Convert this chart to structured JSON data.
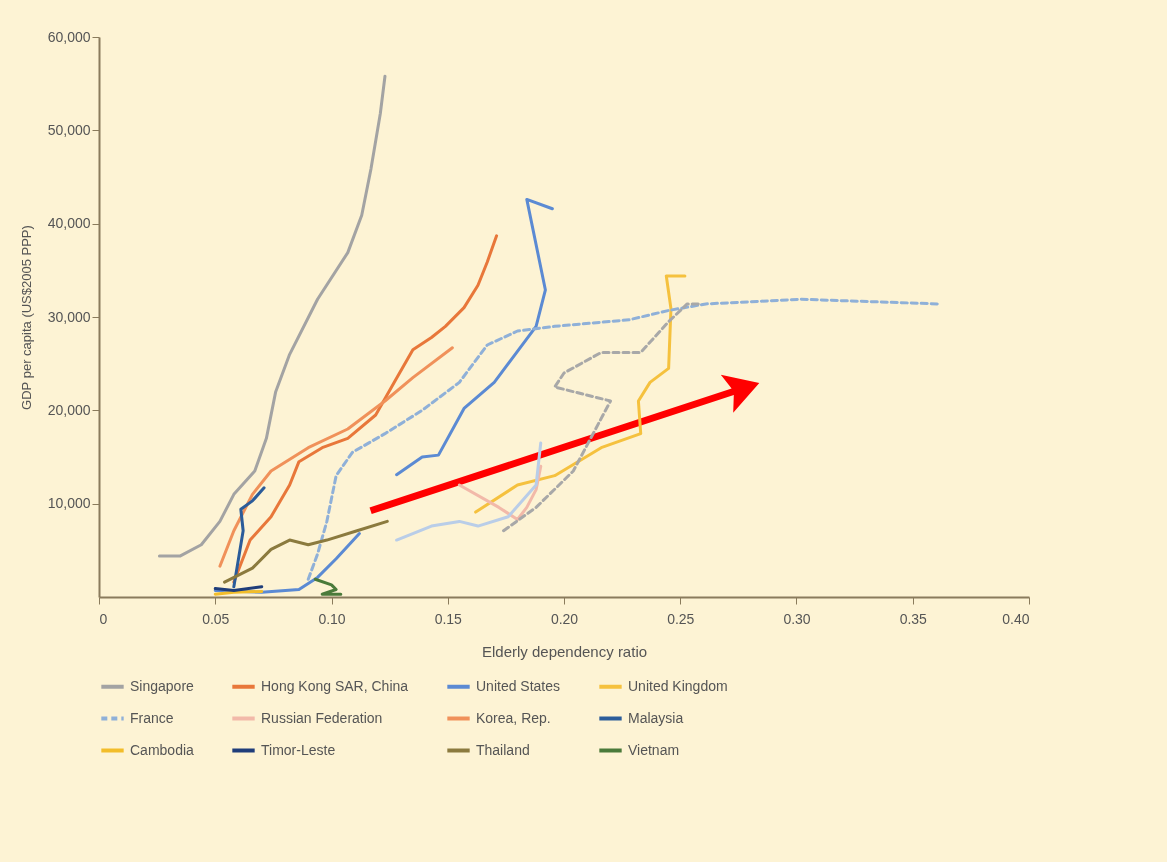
{
  "chart_data": {
    "type": "line",
    "xlabel": "Elderly dependency ratio",
    "ylabel": "GDP per capita (US$2005 PPP)",
    "xlim": [
      0,
      0.4
    ],
    "xticks": [
      0,
      {
        "value": 0.05,
        "label": "0.05"
      },
      {
        "value": 0.1,
        "label": "0.10"
      },
      {
        "value": 0.15,
        "label": "0.15"
      },
      {
        "value": 0.2,
        "label": "0.20"
      },
      {
        "value": 0.25,
        "label": "0.25"
      },
      {
        "value": 0.3,
        "label": "0.30"
      },
      {
        "value": 0.35,
        "label": "0.35"
      },
      {
        "value": 0.4,
        "label": "0.40"
      }
    ],
    "ylim": [
      0,
      60000
    ],
    "yticks": [
      {
        "value": 10000,
        "label": "10,000"
      },
      {
        "value": 20000,
        "label": "20,000"
      },
      {
        "value": 30000,
        "label": "30,000"
      },
      {
        "value": 40000,
        "label": "40,000"
      },
      {
        "value": 50000,
        "label": "50,000"
      },
      {
        "value": 60000,
        "label": "60,000"
      }
    ],
    "grid": false,
    "legend": "bottom",
    "marker": "none",
    "series": [
      {
        "name": "Singapore",
        "color": "#a3a3a3",
        "x": [
          0.026,
          0.035,
          0.044,
          0.052,
          0.058,
          0.067,
          0.072,
          0.076,
          0.082,
          0.094,
          0.107,
          0.113,
          0.117,
          0.121,
          0.123
        ],
        "values": [
          4400,
          4400,
          5600,
          8100,
          11000,
          13500,
          17000,
          22000,
          26000,
          31900,
          36900,
          40900,
          45900,
          51800,
          55800
        ]
      },
      {
        "name": "Hong Kong SAR, China",
        "color": "#e8773a",
        "x": [
          0.058,
          0.065,
          0.074,
          0.082,
          0.086,
          0.096,
          0.107,
          0.119,
          0.127,
          0.135,
          0.143,
          0.149,
          0.157,
          0.163,
          0.167,
          0.171
        ],
        "values": [
          1600,
          6100,
          8600,
          12000,
          14500,
          16000,
          17000,
          19500,
          23000,
          26500,
          27800,
          29000,
          31000,
          33400,
          35900,
          38700
        ]
      },
      {
        "name": "United States",
        "color": "#5b8ad3",
        "x": [
          0.05,
          0.07,
          0.086,
          0.094,
          0.102,
          0.112,
          0.12,
          0.128,
          0.139,
          0.146,
          0.157,
          0.17,
          0.188,
          0.192,
          0.184,
          0.195
        ],
        "values": [
          700,
          500,
          800,
          2100,
          4100,
          6800,
          null,
          13100,
          15000,
          15200,
          20200,
          23000,
          29000,
          32900,
          42600,
          41600
        ]
      },
      {
        "name": "United Kingdom",
        "color": "#f5c13e",
        "x": [
          0.162,
          0.18,
          0.196,
          0.216,
          0.233,
          0.232,
          0.237,
          0.245,
          0.246,
          0.244,
          0.252
        ],
        "values": [
          9100,
          12000,
          13000,
          16000,
          17500,
          21000,
          23000,
          24500,
          30900,
          34400,
          34400
        ]
      },
      {
        "name": "France",
        "color": "#8fb0d8",
        "line_style": "dashed",
        "x": [
          0.09,
          0.094,
          0.098,
          0.102,
          0.109,
          0.123,
          0.139,
          0.155,
          0.167,
          0.18,
          0.196,
          0.228,
          0.245,
          0.261,
          0.302,
          0.361
        ],
        "values": [
          1900,
          4600,
          8100,
          13000,
          15500,
          17500,
          20000,
          23000,
          27000,
          28500,
          29000,
          29700,
          30700,
          31400,
          31900,
          31400
        ]
      },
      {
        "name": "Russian Federation",
        "color": "#f2b9a9",
        "x": [
          0.155,
          0.172,
          0.18,
          0.184,
          0.188,
          0.19
        ],
        "values": [
          12000,
          9600,
          8300,
          9600,
          11500,
          14000
        ]
      },
      {
        "name": "Korea, Rep.",
        "color": "#f0915a",
        "x": [
          0.052,
          0.058,
          0.066,
          0.074,
          0.09,
          0.107,
          0.123,
          0.135,
          0.152
        ],
        "values": [
          3300,
          7100,
          11000,
          13500,
          16000,
          18000,
          21000,
          23500,
          26700
        ]
      },
      {
        "name": "Malaysia",
        "color": "#2b5c9a",
        "x": [
          0.058,
          0.06,
          0.062,
          0.061,
          0.066,
          0.071
        ],
        "values": [
          1100,
          4100,
          7100,
          9400,
          10300,
          11700
        ]
      },
      {
        "name": "Cambodia",
        "color": "#f2bd2a",
        "x": [
          0.05,
          0.058,
          0.07
        ],
        "values": [
          300,
          500,
          600
        ]
      },
      {
        "name": "Timor-Leste",
        "color": "#1f3d7a",
        "x": [
          0.05,
          0.058,
          0.07
        ],
        "values": [
          900,
          700,
          1100
        ]
      },
      {
        "name": "Thailand",
        "color": "#8b7a3e",
        "x": [
          0.054,
          0.066,
          0.074,
          0.082,
          0.09,
          0.098,
          0.111,
          0.124
        ],
        "values": [
          1600,
          3100,
          5100,
          6100,
          5600,
          6100,
          7100,
          8100
        ]
      },
      {
        "name": "Vietnam",
        "color": "#4a7a3a",
        "x": [
          0.093,
          0.1,
          0.102,
          0.096,
          0.104
        ],
        "values": [
          1900,
          1300,
          800,
          300,
          300
        ]
      },
      {
        "color": "#a8a8a8",
        "line_style": "dashed",
        "x": [
          0.174,
          0.188,
          0.204,
          0.22,
          0.196,
          0.2,
          0.216,
          0.233,
          0.245,
          0.253,
          0.259
        ],
        "values": [
          7100,
          9600,
          13500,
          21000,
          22500,
          24000,
          26200,
          26200,
          29500,
          31400,
          31400
        ]
      },
      {
        "color": "#b9cde8",
        "x": [
          0.128,
          0.143,
          0.155,
          0.163,
          0.176,
          0.188,
          0.19
        ],
        "values": [
          6100,
          7600,
          8100,
          7600,
          8600,
          12000,
          16500
        ]
      }
    ]
  }
}
